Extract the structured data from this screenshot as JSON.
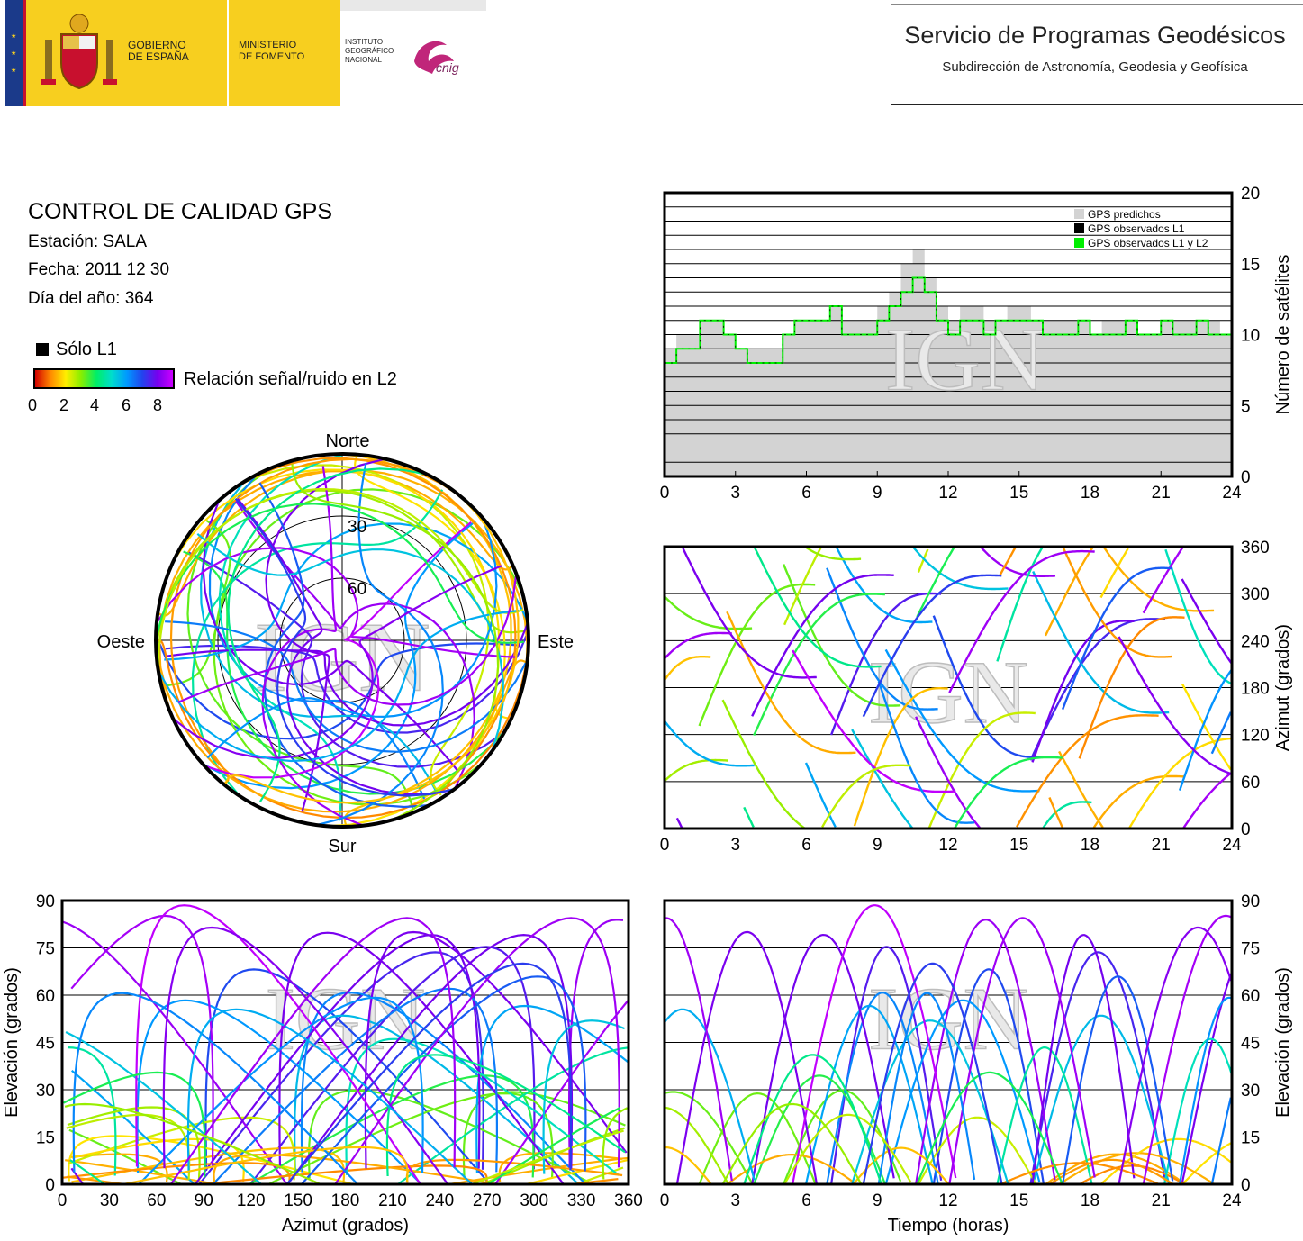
{
  "header": {
    "gobierno": [
      "GOBIERNO",
      "DE ESPAÑA"
    ],
    "ministerio": [
      "MINISTERIO",
      "DE FOMENTO"
    ],
    "ign": [
      "INSTITUTO",
      "GEOGRÁFICO",
      "NACIONAL"
    ],
    "cnig": "cnig",
    "title": "Servicio de Programas Geodésicos",
    "subtitle": "Subdirección de Astronomía, Geodesia y Geofísica"
  },
  "info": {
    "title": "CONTROL DE CALIDAD GPS",
    "station": "Estación: SALA",
    "date": "Fecha: 2011 12 30",
    "doy": "Día del año: 364",
    "legend_l1": "Sólo L1",
    "colorbar_label": "Relación señal/ruido en L2",
    "colorbar_ticks": [
      "0",
      "2",
      "4",
      "6",
      "8"
    ]
  },
  "watermark": "IGN",
  "colors": {
    "predicted": "#d3d3d3",
    "observed_l1": "#000000",
    "observed_l1l2": "#00ee00"
  },
  "chart_data": [
    {
      "type": "area",
      "id": "satellites",
      "ylabel": "Número de satélites",
      "xlim": [
        0,
        24
      ],
      "ylim": [
        0,
        20
      ],
      "xticks": [
        "0",
        "3",
        "6",
        "9",
        "12",
        "15",
        "18",
        "21",
        "24"
      ],
      "yticks": [
        "0",
        "5",
        "10",
        "15",
        "20"
      ],
      "grid": true,
      "legend_position": "top-right",
      "legend": [
        "GPS predichos",
        "GPS observados L1",
        "GPS observados L1 y L2"
      ],
      "series": [
        {
          "name": "GPS predichos",
          "color": "#d3d3d3",
          "x": [
            0,
            0.5,
            1,
            1.5,
            2,
            2.5,
            3,
            3.5,
            4,
            4.5,
            5,
            5.5,
            6,
            6.5,
            7,
            7.5,
            8,
            8.5,
            9,
            9.5,
            10,
            10.5,
            11,
            11.5,
            12,
            12.5,
            13,
            13.5,
            14,
            14.5,
            15,
            15.5,
            16,
            16.5,
            17,
            17.5,
            18,
            18.5,
            19,
            19.5,
            20,
            20.5,
            21,
            21.5,
            22,
            22.5,
            23,
            23.5,
            24
          ],
          "values": [
            9,
            10,
            10,
            11,
            11,
            10,
            9,
            9,
            9,
            9,
            10,
            11,
            11,
            11,
            12,
            11,
            11,
            11,
            12,
            13,
            15,
            16,
            14,
            12,
            11,
            12,
            12,
            11,
            11,
            12,
            12,
            11,
            11,
            11,
            11,
            11,
            10,
            11,
            11,
            11,
            10,
            10,
            11,
            11,
            11,
            11,
            11,
            10,
            10
          ]
        },
        {
          "name": "GPS observados L1 y L2",
          "color": "#00ee00",
          "x": [
            0,
            0.5,
            1,
            1.5,
            2,
            2.5,
            3,
            3.5,
            4,
            4.5,
            5,
            5.5,
            6,
            6.5,
            7,
            7.5,
            8,
            8.5,
            9,
            9.5,
            10,
            10.5,
            11,
            11.5,
            12,
            12.5,
            13,
            13.5,
            14,
            14.5,
            15,
            15.5,
            16,
            16.5,
            17,
            17.5,
            18,
            18.5,
            19,
            19.5,
            20,
            20.5,
            21,
            21.5,
            22,
            22.5,
            23,
            23.5,
            24
          ],
          "values": [
            8,
            9,
            9,
            11,
            11,
            10,
            9,
            8,
            8,
            8,
            10,
            11,
            11,
            11,
            12,
            10,
            10,
            10,
            11,
            12,
            13,
            14,
            13,
            11,
            10,
            11,
            11,
            10,
            11,
            11,
            11,
            11,
            10,
            10,
            10,
            11,
            10,
            10,
            10,
            11,
            10,
            10,
            11,
            10,
            10,
            11,
            10,
            10,
            10
          ]
        }
      ]
    },
    {
      "type": "scatter",
      "id": "azimuth",
      "ylabel": "Azimut (grados)",
      "xlim": [
        0,
        24
      ],
      "ylim": [
        0,
        360
      ],
      "xticks": [
        "0",
        "3",
        "6",
        "9",
        "12",
        "15",
        "18",
        "21",
        "24"
      ],
      "yticks": [
        "0",
        "60",
        "120",
        "180",
        "240",
        "300",
        "360"
      ],
      "grid": true
    },
    {
      "type": "scatter",
      "id": "skyplot",
      "labels": {
        "north": "Norte",
        "south": "Sur",
        "east": "Este",
        "west": "Oeste"
      },
      "rings": [
        "30",
        "60"
      ]
    },
    {
      "type": "scatter",
      "id": "elev_azimuth",
      "xlabel": "Azimut (grados)",
      "ylabel": "Elevación (grados)",
      "xlim": [
        0,
        360
      ],
      "ylim": [
        0,
        90
      ],
      "xticks": [
        "0",
        "30",
        "60",
        "90",
        "120",
        "150",
        "180",
        "210",
        "240",
        "270",
        "300",
        "330",
        "360"
      ],
      "yticks": [
        "0",
        "15",
        "30",
        "45",
        "60",
        "75",
        "90"
      ],
      "grid": true
    },
    {
      "type": "scatter",
      "id": "elev_time",
      "xlabel": "Tiempo (horas)",
      "ylabel": "Elevación (grados)",
      "xlim": [
        0,
        24
      ],
      "ylim": [
        0,
        90
      ],
      "xticks": [
        "0",
        "3",
        "6",
        "9",
        "12",
        "15",
        "18",
        "21",
        "24"
      ],
      "yticks": [
        "0",
        "15",
        "30",
        "45",
        "60",
        "75",
        "90"
      ],
      "grid": true
    }
  ]
}
